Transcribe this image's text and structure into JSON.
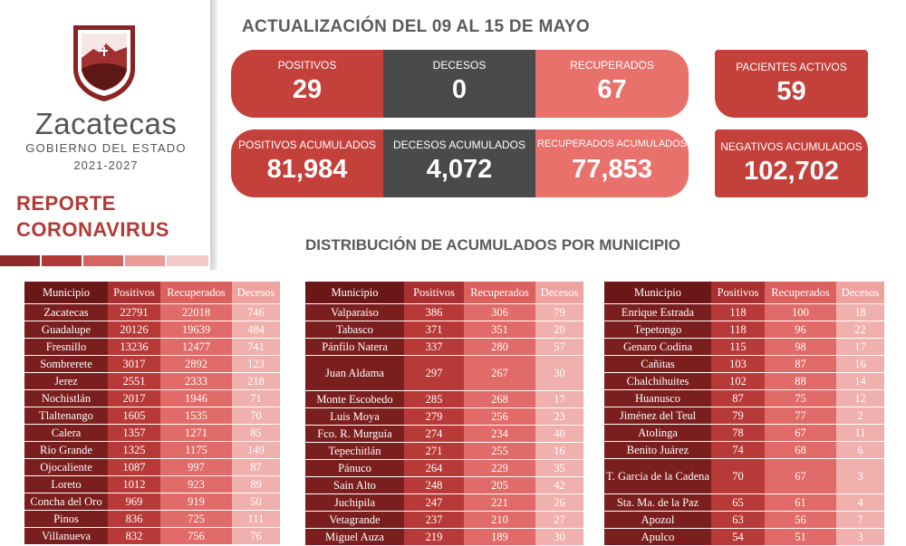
{
  "brand": {
    "name": "Zacatecas",
    "subtitle": "GOBIERNO DEL ESTADO",
    "years": "2021-2027",
    "report_line1": "REPORTE",
    "report_line2": "CORONAVIRUS"
  },
  "header": {
    "title": "ACTUALIZACIÓN DEL 09 AL 15 DE MAYO"
  },
  "weekly": {
    "positivos": {
      "label": "POSITIVOS",
      "value": "29"
    },
    "decesos": {
      "label": "DECESOS",
      "value": "0"
    },
    "recuperados": {
      "label": "RECUPERADOS",
      "value": "67"
    },
    "activos": {
      "label": "PACIENTES ACTIVOS",
      "value": "59"
    }
  },
  "cumulative": {
    "positivos": {
      "label": "POSITIVOS ACUMULADOS",
      "value": "81,984"
    },
    "decesos": {
      "label": "DECESOS ACUMULADOS",
      "value": "4,072"
    },
    "recuperados": {
      "label": "RECUPERADOS ACUMULADOS",
      "value": "77,853"
    },
    "negativos": {
      "label": "NEGATIVOS ACUMULADOS",
      "value": "102,702"
    }
  },
  "distribution_title": "DISTRIBUCIÓN DE ACUMULADOS POR MUNICIPIO",
  "table_headers": [
    "Municipio",
    "Positivos",
    "Recuperados",
    "Decesos"
  ],
  "tables": [
    {
      "rows": [
        {
          "m": "Zacatecas",
          "p": "22791",
          "r": "22018",
          "d": "746",
          "b": true
        },
        {
          "m": "Guadalupe",
          "p": "20126",
          "r": "19639",
          "d": "484",
          "b": true
        },
        {
          "m": "Fresnillo",
          "p": "13236",
          "r": "12477",
          "d": "741",
          "b": true
        },
        {
          "m": "Sombrerete",
          "p": "3017",
          "r": "2892",
          "d": "123",
          "b": true
        },
        {
          "m": "Jerez",
          "p": "2551",
          "r": "2333",
          "d": "218",
          "b": true
        },
        {
          "m": "Nochistlán",
          "p": "2017",
          "r": "1946",
          "d": "71",
          "b": false
        },
        {
          "m": "Tlaltenango",
          "p": "1605",
          "r": "1535",
          "d": "70",
          "b": true
        },
        {
          "m": "Calera",
          "p": "1357",
          "r": "1271",
          "d": "85",
          "b": true
        },
        {
          "m": "Río Grande",
          "p": "1325",
          "r": "1175",
          "d": "149",
          "b": false
        },
        {
          "m": "Ojocaliente",
          "p": "1087",
          "r": "997",
          "d": "87",
          "b": true
        },
        {
          "m": "Loreto",
          "p": "1012",
          "r": "923",
          "d": "89",
          "b": false
        },
        {
          "m": "Concha del Oro",
          "p": "969",
          "r": "919",
          "d": "50",
          "b": false
        },
        {
          "m": "Pinos",
          "p": "836",
          "r": "725",
          "d": "111",
          "b": false
        },
        {
          "m": "Villanueva",
          "p": "832",
          "r": "756",
          "d": "76",
          "b": false
        }
      ]
    },
    {
      "rows": [
        {
          "m": "Valparaíso",
          "p": "386",
          "r": "306",
          "d": "79",
          "b": true
        },
        {
          "m": "Tabasco",
          "p": "371",
          "r": "351",
          "d": "20",
          "b": false
        },
        {
          "m": "Pánfilo Natera",
          "p": "337",
          "r": "280",
          "d": "57",
          "b": false
        },
        {
          "m": "Juan Aldama",
          "p": "297",
          "r": "267",
          "d": "30",
          "b": false,
          "tall": true
        },
        {
          "m": "Monte Escobedo",
          "p": "285",
          "r": "268",
          "d": "17",
          "b": false
        },
        {
          "m": "Luis Moya",
          "p": "279",
          "r": "256",
          "d": "23",
          "b": false
        },
        {
          "m": "Fco. R. Murguía",
          "p": "274",
          "r": "234",
          "d": "40",
          "b": false
        },
        {
          "m": "Tepechitlán",
          "p": "271",
          "r": "255",
          "d": "16",
          "b": false
        },
        {
          "m": "Pánuco",
          "p": "264",
          "r": "229",
          "d": "35",
          "b": false
        },
        {
          "m": "Sain Alto",
          "p": "248",
          "r": "205",
          "d": "42",
          "b": false
        },
        {
          "m": "Juchipila",
          "p": "247",
          "r": "221",
          "d": "26",
          "b": false
        },
        {
          "m": "Vetagrande",
          "p": "237",
          "r": "210",
          "d": "27",
          "b": false
        },
        {
          "m": "Miguel Auza",
          "p": "219",
          "r": "189",
          "d": "30",
          "b": true
        }
      ]
    },
    {
      "rows": [
        {
          "m": "Enrique Estrada",
          "p": "118",
          "r": "100",
          "d": "18",
          "b": false
        },
        {
          "m": "Tepetongo",
          "p": "118",
          "r": "96",
          "d": "22",
          "b": false
        },
        {
          "m": "Genaro Codina",
          "p": "115",
          "r": "98",
          "d": "17",
          "b": false
        },
        {
          "m": "Cañitas",
          "p": "103",
          "r": "87",
          "d": "16",
          "b": false
        },
        {
          "m": "Chalchihuites",
          "p": "102",
          "r": "88",
          "d": "14",
          "b": false
        },
        {
          "m": "Huanusco",
          "p": "87",
          "r": "75",
          "d": "12",
          "b": false
        },
        {
          "m": "Jiménez del Teul",
          "p": "79",
          "r": "77",
          "d": "2",
          "b": false
        },
        {
          "m": "Atolinga",
          "p": "78",
          "r": "67",
          "d": "11",
          "b": false
        },
        {
          "m": "Benito Juárez",
          "p": "74",
          "r": "68",
          "d": "6",
          "b": false
        },
        {
          "m": "T. García de la Cadena",
          "p": "70",
          "r": "67",
          "d": "3",
          "b": false,
          "tall": true
        },
        {
          "m": "Sta. Ma. de la Paz",
          "p": "65",
          "r": "61",
          "d": "4",
          "b": false
        },
        {
          "m": "Apozol",
          "p": "63",
          "r": "56",
          "d": "7",
          "b": false
        },
        {
          "m": "Apulco",
          "p": "54",
          "r": "51",
          "d": "3",
          "b": false
        }
      ]
    }
  ]
}
